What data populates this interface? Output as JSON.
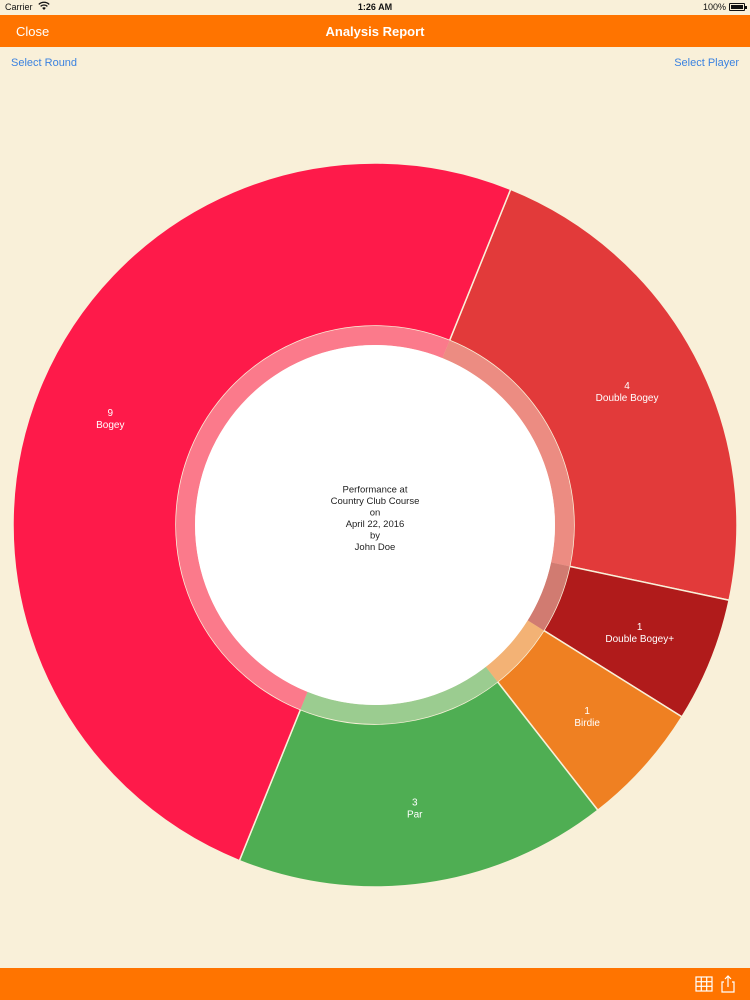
{
  "status": {
    "carrier": "Carrier",
    "time": "1:26 AM",
    "battery": "100%"
  },
  "nav": {
    "close_label": "Close",
    "title": "Analysis Report"
  },
  "links": {
    "select_round": "Select Round",
    "select_player": "Select Player"
  },
  "chart_data": {
    "type": "pie",
    "style": "donut",
    "categories": [
      "Double Bogey",
      "Double Bogey+",
      "Birdie",
      "Par",
      "Bogey"
    ],
    "values": [
      4,
      1,
      1,
      3,
      9
    ],
    "colors": [
      "#e23a3a",
      "#b01b1b",
      "#ef8022",
      "#4fae53",
      "#fe1a4a"
    ],
    "center_text": [
      "Performance at",
      "Country Club Course",
      "on",
      "April 22, 2016",
      "by",
      "John Doe"
    ]
  },
  "toolbar": {
    "grid_icon": "grid-icon",
    "share_icon": "share-icon"
  }
}
